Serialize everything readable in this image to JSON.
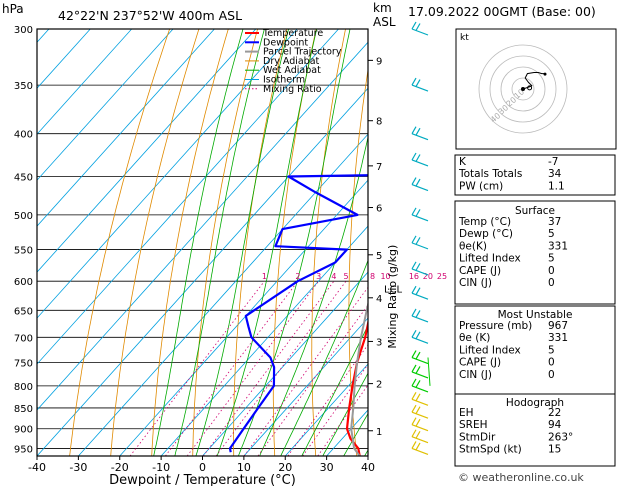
{
  "header": {
    "pressure_unit": "hPa",
    "location": "42°22'N  237°52'W  400m  ASL",
    "km_unit_line1": "km",
    "km_unit_line2": "ASL",
    "datetime": "17.09.2022  00GMT  (Base: 00)"
  },
  "chart_data": {
    "type": "line",
    "xlabel": "Dewpoint / Temperature (°C)",
    "right_axis_label": "Mixing Ratio (g/kg)",
    "xlim": [
      -40,
      40
    ],
    "ylim": [
      970,
      300
    ],
    "y_scale": "log-pressure",
    "x_ticks": [
      -40,
      -30,
      -20,
      -10,
      0,
      10,
      20,
      30,
      40
    ],
    "pressure_levels": [
      300,
      350,
      400,
      450,
      500,
      550,
      600,
      650,
      700,
      750,
      800,
      850,
      900,
      950
    ],
    "height_ticks": [
      {
        "km": "1",
        "p": 905
      },
      {
        "km": "2",
        "p": 795
      },
      {
        "km": "3",
        "p": 708
      },
      {
        "km": "4",
        "p": 628
      },
      {
        "km": "5",
        "p": 558
      },
      {
        "km": "6",
        "p": 490
      },
      {
        "km": "7",
        "p": 437
      },
      {
        "km": "8",
        "p": 386
      },
      {
        "km": "9",
        "p": 327
      }
    ],
    "lcl_label": "LCL",
    "lcl_p": 612,
    "mixing_ratio_labels": [
      "1",
      "2",
      "3",
      "4",
      "5",
      "8",
      "10",
      "16",
      "20",
      "25"
    ],
    "legend": [
      "Temperature",
      "Dewpoint",
      "Parcel Trajectory",
      "Dry Adiabat",
      "Wet Adiabat",
      "Isotherm",
      "Mixing Ratio"
    ],
    "series": [
      {
        "name": "Temperature",
        "color": "#ff0000",
        "points": [
          [
            970,
            38
          ],
          [
            950,
            36
          ],
          [
            925,
            32
          ],
          [
            900,
            29
          ],
          [
            850,
            25
          ],
          [
            800,
            21
          ],
          [
            750,
            17
          ],
          [
            700,
            13.5
          ],
          [
            650,
            9
          ],
          [
            600,
            5
          ],
          [
            580,
            3
          ],
          [
            550,
            6.5
          ],
          [
            520,
            3.5
          ],
          [
            500,
            2
          ],
          [
            460,
            -1
          ],
          [
            440,
            -3
          ],
          [
            420,
            -6
          ],
          [
            400,
            -9
          ],
          [
            380,
            -12.5
          ],
          [
            350,
            -15.5
          ],
          [
            320,
            -20
          ],
          [
            300,
            -24
          ]
        ]
      },
      {
        "name": "Dewpoint",
        "color": "#0000ff",
        "points": [
          [
            960,
            6
          ],
          [
            950,
            5
          ],
          [
            900,
            4
          ],
          [
            850,
            3
          ],
          [
            800,
            2
          ],
          [
            760,
            -2
          ],
          [
            740,
            -5
          ],
          [
            700,
            -14
          ],
          [
            680,
            -17
          ],
          [
            660,
            -20
          ],
          [
            600,
            -15
          ],
          [
            570,
            -10
          ],
          [
            550,
            -10
          ],
          [
            545,
            -28
          ],
          [
            520,
            -30
          ],
          [
            500,
            -15
          ],
          [
            470,
            -30
          ],
          [
            450,
            -40
          ],
          [
            448,
            -15
          ],
          [
            420,
            -15
          ],
          [
            400,
            -12
          ],
          [
            390,
            -14
          ],
          [
            370,
            -22
          ],
          [
            350,
            -20
          ],
          [
            330,
            -22
          ],
          [
            310,
            -23
          ],
          [
            300,
            -22
          ]
        ]
      },
      {
        "name": "Parcel Trajectory",
        "color": "#999999",
        "points": [
          [
            970,
            38
          ],
          [
            950,
            35
          ],
          [
            900,
            30
          ],
          [
            850,
            26
          ],
          [
            800,
            21.5
          ],
          [
            750,
            17
          ],
          [
            700,
            12.5
          ],
          [
            650,
            8
          ],
          [
            612,
            4.5
          ],
          [
            600,
            3
          ],
          [
            550,
            0
          ],
          [
            500,
            -3
          ],
          [
            450,
            -7
          ],
          [
            400,
            -12
          ],
          [
            350,
            -17
          ],
          [
            300,
            -24
          ]
        ]
      }
    ],
    "wind_barbs": [
      {
        "p": 300,
        "color": "#00aac0"
      },
      {
        "p": 350,
        "color": "#00aac0"
      },
      {
        "p": 400,
        "color": "#00aac0"
      },
      {
        "p": 430,
        "color": "#00aac0"
      },
      {
        "p": 460,
        "color": "#00aac0"
      },
      {
        "p": 500,
        "color": "#00aac0"
      },
      {
        "p": 540,
        "color": "#00aac0"
      },
      {
        "p": 580,
        "color": "#00aac0"
      },
      {
        "p": 620,
        "color": "#00aac0"
      },
      {
        "p": 660,
        "color": "#00aac0"
      },
      {
        "p": 700,
        "color": "#00aac0"
      },
      {
        "p": 740,
        "color": "#00cc00"
      },
      {
        "p": 770,
        "color": "#00cc00"
      },
      {
        "p": 800,
        "color": "#00cc00"
      },
      {
        "p": 830,
        "color": "#e0c000"
      },
      {
        "p": 860,
        "color": "#e0c000"
      },
      {
        "p": 890,
        "color": "#e0c000"
      },
      {
        "p": 920,
        "color": "#e0c000"
      },
      {
        "p": 950,
        "color": "#e0c000"
      }
    ]
  },
  "hodograph": {
    "unit": "kt",
    "ring_labels": [
      "10",
      "20",
      "30",
      "40"
    ],
    "trace_kt": [
      [
        0,
        0
      ],
      [
        3,
        1
      ],
      [
        6,
        2
      ],
      [
        8,
        3
      ],
      [
        5,
        6
      ],
      [
        2,
        10
      ],
      [
        4,
        14
      ],
      [
        10,
        15
      ],
      [
        14,
        15
      ],
      [
        17,
        14
      ],
      [
        19,
        14
      ],
      [
        20,
        13.5
      ]
    ],
    "storm_motion_kt": [
      6,
      1
    ]
  },
  "indices": {
    "rows": [
      {
        "label": "K",
        "value": "-7"
      },
      {
        "label": "Totals Totals",
        "value": "34"
      },
      {
        "label": "PW (cm)",
        "value": "1.1"
      }
    ]
  },
  "surface": {
    "title": "Surface",
    "rows": [
      {
        "label": "Temp (°C)",
        "value": "37"
      },
      {
        "label": "Dewp (°C)",
        "value": "5"
      },
      {
        "label": "θe(K)",
        "value": "331"
      },
      {
        "label": "Lifted Index",
        "value": "5"
      },
      {
        "label": "CAPE (J)",
        "value": "0"
      },
      {
        "label": "CIN (J)",
        "value": "0"
      }
    ]
  },
  "most_unstable": {
    "title": "Most Unstable",
    "rows": [
      {
        "label": "Pressure (mb)",
        "value": "967"
      },
      {
        "label": "θe (K)",
        "value": "331"
      },
      {
        "label": "Lifted Index",
        "value": "5"
      },
      {
        "label": "CAPE (J)",
        "value": "0"
      },
      {
        "label": "CIN (J)",
        "value": "0"
      }
    ]
  },
  "hodograph_table": {
    "title": "Hodograph",
    "rows": [
      {
        "label": "EH",
        "value": "22"
      },
      {
        "label": "SREH",
        "value": "94"
      },
      {
        "label": "StmDir",
        "value": "263°"
      },
      {
        "label": "StmSpd (kt)",
        "value": "15"
      }
    ]
  },
  "footer": {
    "credit": "© weatheronline.co.uk"
  },
  "colors": {
    "temperature": "#ff0000",
    "dewpoint": "#0000ff",
    "parcel": "#999999",
    "dry_adiabat": "#e08a00",
    "wet_adiabat": "#00aa00",
    "isotherm": "#00a0e0",
    "mixing_ratio": "#d0006f"
  }
}
